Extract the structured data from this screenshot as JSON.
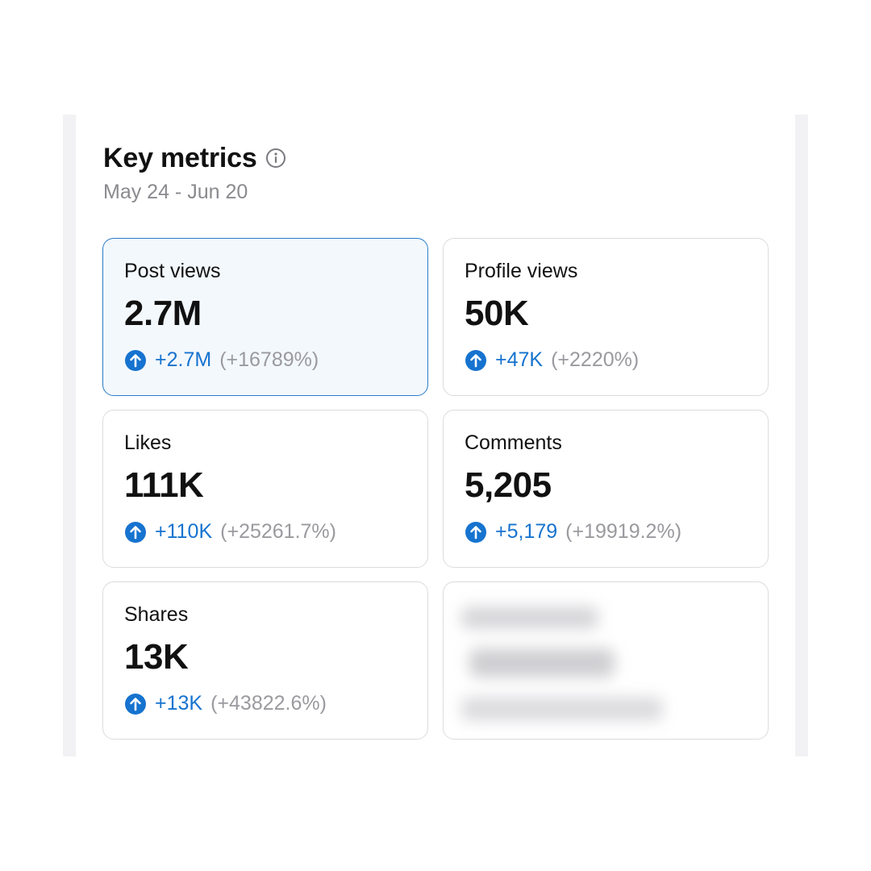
{
  "header": {
    "title": "Key metrics",
    "date_range": "May 24 - Jun 20"
  },
  "metrics": [
    {
      "label": "Post views",
      "value": "2.7M",
      "delta": "+2.7M",
      "percent": "(+16789%)",
      "selected": true
    },
    {
      "label": "Profile views",
      "value": "50K",
      "delta": "+47K",
      "percent": "(+2220%)",
      "selected": false
    },
    {
      "label": "Likes",
      "value": "111K",
      "delta": "+110K",
      "percent": "(+25261.7%)",
      "selected": false
    },
    {
      "label": "Comments",
      "value": "5,205",
      "delta": "+5,179",
      "percent": "(+19919.2%)",
      "selected": false
    },
    {
      "label": "Shares",
      "value": "13K",
      "delta": "+13K",
      "percent": "(+43822.6%)",
      "selected": false
    }
  ],
  "icons": {
    "info": "info-circle-icon",
    "increase": "arrow-up-circle-icon"
  },
  "colors": {
    "accent": "#1673cf",
    "selected_card_bg": "#f3f8fd",
    "selected_card_border": "#2a7cc7",
    "muted_text": "#8a8a8f"
  }
}
